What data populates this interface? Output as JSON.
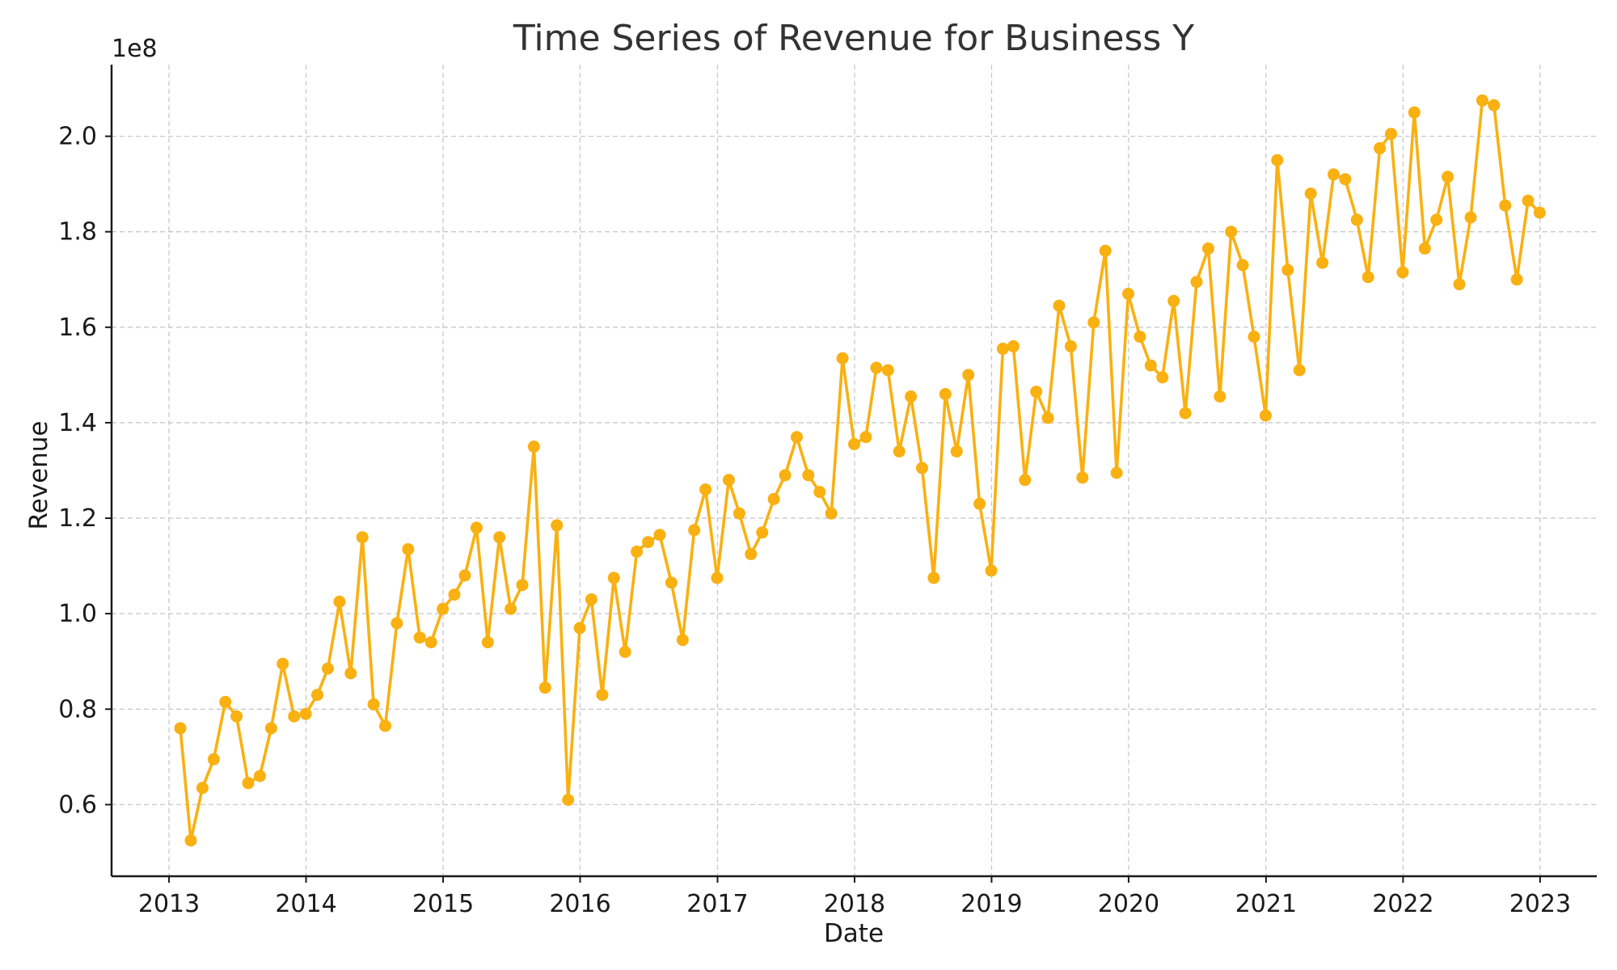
{
  "chart_data": {
    "type": "line",
    "title": "Time Series of Revenue for Business Y",
    "xlabel": "Date",
    "ylabel": "Revenue",
    "y_offset_label": "1e8",
    "y_scale_exponent": 8,
    "xlim": [
      "2012-08-01",
      "2023-06-01"
    ],
    "ylim": [
      45000000,
      215000000
    ],
    "x_ticks": [
      "2013",
      "2014",
      "2015",
      "2016",
      "2017",
      "2018",
      "2019",
      "2020",
      "2021",
      "2022",
      "2023"
    ],
    "y_ticks": [
      "0.6",
      "0.8",
      "1.0",
      "1.2",
      "1.4",
      "1.6",
      "1.8",
      "2.0"
    ],
    "grid": true,
    "series": [
      {
        "color": "#f9b011",
        "marker": "circle",
        "x": [
          "2013-01-31",
          "2013-02-28",
          "2013-03-31",
          "2013-04-30",
          "2013-05-31",
          "2013-06-30",
          "2013-07-31",
          "2013-08-31",
          "2013-09-30",
          "2013-10-31",
          "2013-11-30",
          "2013-12-31",
          "2014-01-31",
          "2014-02-28",
          "2014-03-31",
          "2014-04-30",
          "2014-05-31",
          "2014-06-30",
          "2014-07-31",
          "2014-08-31",
          "2014-09-30",
          "2014-10-31",
          "2014-11-30",
          "2014-12-31",
          "2015-01-31",
          "2015-02-28",
          "2015-03-31",
          "2015-04-30",
          "2015-05-31",
          "2015-06-30",
          "2015-07-31",
          "2015-08-31",
          "2015-09-30",
          "2015-10-31",
          "2015-11-30",
          "2015-12-31",
          "2016-01-31",
          "2016-02-29",
          "2016-03-31",
          "2016-04-30",
          "2016-05-31",
          "2016-06-30",
          "2016-07-31",
          "2016-08-31",
          "2016-09-30",
          "2016-10-31",
          "2016-11-30",
          "2016-12-31",
          "2017-01-31",
          "2017-02-28",
          "2017-03-31",
          "2017-04-30",
          "2017-05-31",
          "2017-06-30",
          "2017-07-31",
          "2017-08-31",
          "2017-09-30",
          "2017-10-31",
          "2017-11-30",
          "2017-12-31",
          "2018-01-31",
          "2018-02-28",
          "2018-03-31",
          "2018-04-30",
          "2018-05-31",
          "2018-06-30",
          "2018-07-31",
          "2018-08-31",
          "2018-09-30",
          "2018-10-31",
          "2018-11-30",
          "2018-12-31",
          "2019-01-31",
          "2019-02-28",
          "2019-03-31",
          "2019-04-30",
          "2019-05-31",
          "2019-06-30",
          "2019-07-31",
          "2019-08-31",
          "2019-09-30",
          "2019-10-31",
          "2019-11-30",
          "2019-12-31",
          "2020-01-31",
          "2020-02-29",
          "2020-03-31",
          "2020-04-30",
          "2020-05-31",
          "2020-06-30",
          "2020-07-31",
          "2020-08-31",
          "2020-09-30",
          "2020-10-31",
          "2020-11-30",
          "2020-12-31",
          "2021-01-31",
          "2021-02-28",
          "2021-03-31",
          "2021-04-30",
          "2021-05-31",
          "2021-06-30",
          "2021-07-31",
          "2021-08-31",
          "2021-09-30",
          "2021-10-31",
          "2021-11-30",
          "2021-12-31",
          "2022-01-31",
          "2022-02-28",
          "2022-03-31",
          "2022-04-30",
          "2022-05-31",
          "2022-06-30",
          "2022-07-31",
          "2022-08-31",
          "2022-09-30",
          "2022-10-31",
          "2022-11-30",
          "2022-12-31"
        ],
        "y": [
          76000000,
          52500000,
          63500000,
          69500000,
          81500000,
          78500000,
          64500000,
          66000000,
          76000000,
          89500000,
          78500000,
          79000000,
          83000000,
          88500000,
          102500000,
          87500000,
          116000000,
          81000000,
          76500000,
          98000000,
          113500000,
          95000000,
          94000000,
          101000000,
          104000000,
          108000000,
          118000000,
          94000000,
          116000000,
          101000000,
          106000000,
          135000000,
          84500000,
          118500000,
          61000000,
          97000000,
          103000000,
          83000000,
          107500000,
          92000000,
          113000000,
          115000000,
          116500000,
          106500000,
          94500000,
          117500000,
          126000000,
          107500000,
          128000000,
          121000000,
          112500000,
          117000000,
          124000000,
          129000000,
          137000000,
          129000000,
          125500000,
          121000000,
          153500000,
          135500000,
          137000000,
          151500000,
          151000000,
          134000000,
          145500000,
          130500000,
          107500000,
          146000000,
          134000000,
          150000000,
          123000000,
          109000000,
          155500000,
          156000000,
          128000000,
          146500000,
          141000000,
          164500000,
          156000000,
          128500000,
          161000000,
          176000000,
          129500000,
          167000000,
          158000000,
          152000000,
          149500000,
          165500000,
          142000000,
          169500000,
          176500000,
          145500000,
          180000000,
          173000000,
          158000000,
          141500000,
          195000000,
          172000000,
          151000000,
          188000000,
          173500000,
          192000000,
          191000000,
          182500000,
          170500000,
          197500000,
          200500000,
          171500000,
          205000000,
          176500000,
          182500000,
          191500000,
          169000000,
          183000000,
          207500000,
          206500000,
          185500000,
          170000000,
          186500000,
          184000000
        ]
      }
    ]
  }
}
